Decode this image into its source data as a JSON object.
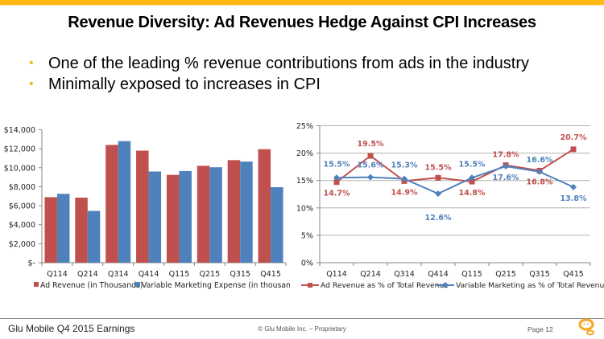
{
  "slide": {
    "title": "Revenue Diversity:  Ad Revenues Hedge Against CPI Increases",
    "bullets": [
      "One of the leading % revenue contributions from ads in the industry",
      "Minimally exposed to increases in CPI"
    ],
    "accent_color": "#FDB813",
    "bullet_color": "#F5B335"
  },
  "footer": {
    "left": "Glu Mobile Q4 2015 Earnings",
    "center": "© Glu Mobile Inc. – Proprietary",
    "page": "Page 12",
    "logo_icon": "glu-logo-icon"
  },
  "chart_data": [
    {
      "type": "bar",
      "title": "",
      "xlabel": "",
      "ylabel": "",
      "categories": [
        "Q114",
        "Q214",
        "Q314",
        "Q414",
        "Q115",
        "Q215",
        "Q315",
        "Q415"
      ],
      "series": [
        {
          "name": "Ad Revenue (in Thousands)",
          "color": "#C0504D",
          "values": [
            6900,
            6850,
            12400,
            11800,
            9250,
            10200,
            10800,
            11950
          ]
        },
        {
          "name": "Variable Marketing Expense (in thousands)",
          "color": "#4F81BD",
          "values": [
            7250,
            5450,
            12800,
            9600,
            9650,
            10050,
            10650,
            7950
          ]
        }
      ],
      "ylim": [
        0,
        14000
      ],
      "yticks": [
        0,
        2000,
        4000,
        6000,
        8000,
        10000,
        12000,
        14000
      ],
      "ytick_labels": [
        "$-",
        "$2,000",
        "$4,000",
        "$6,000",
        "$8,000",
        "$10,000",
        "$12,000",
        "$14,000"
      ],
      "grid": false,
      "legend": "bottom"
    },
    {
      "type": "line",
      "title": "",
      "xlabel": "",
      "ylabel": "",
      "categories": [
        "Q114",
        "Q214",
        "Q314",
        "Q414",
        "Q115",
        "Q215",
        "Q315",
        "Q415"
      ],
      "series": [
        {
          "name": "Ad Revenue as % of Total Revenue",
          "color": "#C0504D",
          "marker": "square",
          "values": [
            14.7,
            19.5,
            14.9,
            15.5,
            14.8,
            17.8,
            16.8,
            20.7
          ],
          "labels": [
            "14.7%",
            "19.5%",
            "14.9%",
            "15.5%",
            "14.8%",
            "17.8%",
            "16.8%",
            "20.7%"
          ]
        },
        {
          "name": "Variable Marketing as % of Total Revenue",
          "color": "#4F81BD",
          "marker": "diamond",
          "values": [
            15.5,
            15.6,
            15.3,
            12.6,
            15.5,
            17.6,
            16.6,
            13.8
          ],
          "labels": [
            "15.5%",
            "15.6%",
            "15.3%",
            "12.6%",
            "15.5%",
            "17.6%",
            "16.6%",
            "13.8%"
          ]
        }
      ],
      "ylim": [
        0,
        25
      ],
      "yticks": [
        0,
        5,
        10,
        15,
        20,
        25
      ],
      "ytick_labels": [
        "0%",
        "5%",
        "10%",
        "15%",
        "20%",
        "25%"
      ],
      "grid": true,
      "legend": "bottom"
    }
  ]
}
